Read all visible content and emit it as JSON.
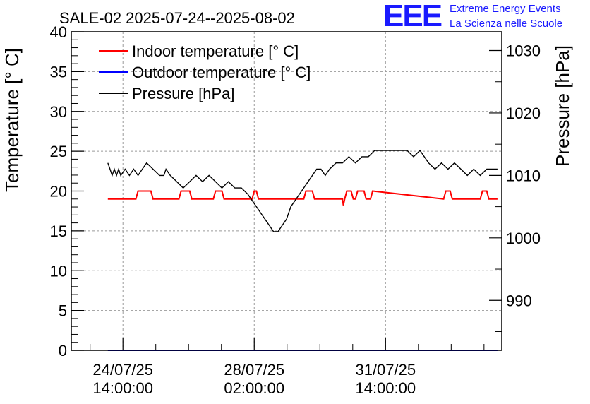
{
  "logo": {
    "mark": "EEE",
    "line1": "Extreme Energy Events",
    "line2": "La Scienza nelle Scuole"
  },
  "chart_data": {
    "type": "line",
    "title": "SALE-02 2025-07-24--2025-08-02",
    "ylabel": "Temperature [° C]",
    "y2label": "Pressure [hPa]",
    "ylim": [
      0,
      40
    ],
    "y2lim": [
      982,
      1033
    ],
    "yticks": [
      "0",
      "5",
      "10",
      "15",
      "20",
      "25",
      "30",
      "35",
      "40"
    ],
    "y2ticks": [
      "990",
      "1000",
      "1010",
      "1020",
      "1030"
    ],
    "xlim": [
      0,
      10
    ],
    "xticks": [
      {
        "x": 1.2,
        "line1": "24/07/25",
        "line2": "14:00:00"
      },
      {
        "x": 4.25,
        "line1": "28/07/25",
        "line2": "02:00:00"
      },
      {
        "x": 7.3,
        "line1": "31/07/25",
        "line2": "14:00:00"
      }
    ],
    "grid": true,
    "legend_position": "top-left",
    "series": [
      {
        "name": "Indoor temperature [° C]",
        "color": "#ff0000",
        "axis": "left",
        "x": [
          0.85,
          1.5,
          1.55,
          1.85,
          1.9,
          2.5,
          2.55,
          2.75,
          2.8,
          3.3,
          3.35,
          3.5,
          3.55,
          4.2,
          4.25,
          4.3,
          4.35,
          5.4,
          5.45,
          5.6,
          5.65,
          6.3,
          6.32,
          6.35,
          6.4,
          6.5,
          6.55,
          6.6,
          6.65,
          6.8,
          6.85,
          6.95,
          7.0,
          8.65,
          8.7,
          8.8,
          8.85,
          9.5,
          9.55,
          9.65,
          9.7,
          9.9
        ],
        "values": [
          19,
          19,
          20,
          20,
          19,
          19,
          20,
          20,
          19,
          19,
          20,
          20,
          19,
          19,
          20,
          20,
          19,
          19,
          20,
          20,
          19,
          19,
          18.2,
          19,
          20,
          20,
          19,
          19,
          20,
          20,
          19,
          19,
          20,
          19,
          20,
          20,
          19,
          19,
          20,
          20,
          19,
          19
        ]
      },
      {
        "name": "Outdoor temperature [° C]",
        "color": "#0000ff",
        "axis": "left",
        "x": [
          0.85,
          9.9
        ],
        "values": [
          0,
          0
        ]
      },
      {
        "name": "Pressure [hPa]",
        "color": "#000000",
        "axis": "right",
        "x": [
          0.85,
          0.9,
          0.95,
          1.0,
          1.05,
          1.1,
          1.15,
          1.25,
          1.35,
          1.45,
          1.55,
          1.65,
          1.75,
          1.9,
          2.05,
          2.15,
          2.2,
          2.3,
          2.45,
          2.6,
          2.75,
          2.9,
          3.05,
          3.2,
          3.35,
          3.5,
          3.65,
          3.8,
          3.95,
          4.1,
          4.2,
          4.3,
          4.4,
          4.5,
          4.6,
          4.7,
          4.8,
          4.9,
          5.0,
          5.1,
          5.2,
          5.3,
          5.4,
          5.5,
          5.6,
          5.7,
          5.8,
          5.9,
          6.0,
          6.15,
          6.3,
          6.45,
          6.6,
          6.75,
          6.9,
          7.05,
          7.2,
          7.35,
          7.5,
          7.65,
          7.8,
          7.95,
          8.1,
          8.2,
          8.3,
          8.45,
          8.6,
          8.75,
          8.9,
          9.05,
          9.2,
          9.35,
          9.5,
          9.65,
          9.8,
          9.9
        ],
        "values": [
          1012,
          1011,
          1010,
          1011,
          1010,
          1011,
          1010,
          1011,
          1010,
          1011,
          1010,
          1011,
          1012,
          1011,
          1010,
          1010,
          1011,
          1010,
          1009,
          1008,
          1009,
          1010,
          1009,
          1010,
          1009,
          1008,
          1009,
          1008,
          1008,
          1007,
          1006,
          1005,
          1004,
          1003,
          1002,
          1001,
          1001,
          1002,
          1003,
          1005,
          1006,
          1007,
          1008,
          1009,
          1010,
          1011,
          1011,
          1010,
          1011,
          1012,
          1012,
          1013,
          1012,
          1013,
          1013,
          1014,
          1014,
          1014,
          1014,
          1014,
          1014,
          1013,
          1014,
          1013,
          1012,
          1011,
          1012,
          1011,
          1012,
          1011,
          1010,
          1011,
          1010,
          1011,
          1011,
          1011
        ]
      }
    ]
  }
}
